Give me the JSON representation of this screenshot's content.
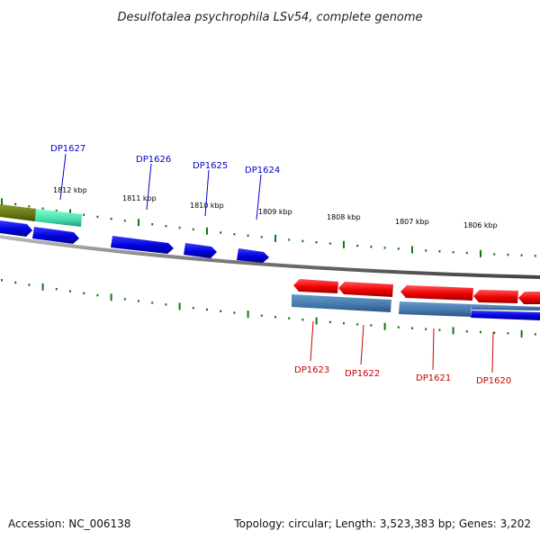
{
  "title": "Desulfotalea psychrophila LSv54, complete genome",
  "footer": {
    "accession": "Accession: NC_006138",
    "summary": "Topology: circular; Length: 3,523,383 bp; Genes: 3,202"
  },
  "colors": {
    "forward_gene": "#0000dd",
    "reverse_gene": "#ee0000",
    "backbone": "#777777",
    "tick": "#117711",
    "teal_track": "#55ddaa",
    "olive_track": "#667711",
    "steelblue_track": "#4477aa"
  },
  "scale_labels": [
    "1812 kbp",
    "1811 kbp",
    "1810 kbp",
    "1809 kbp",
    "1808 kbp",
    "1807 kbp",
    "1806 kbp"
  ],
  "gene_labels": {
    "forward": [
      "DP1627",
      "DP1626",
      "DP1625",
      "DP1624"
    ],
    "reverse": [
      "DP1623",
      "DP1622",
      "DP1621",
      "DP1620"
    ]
  }
}
